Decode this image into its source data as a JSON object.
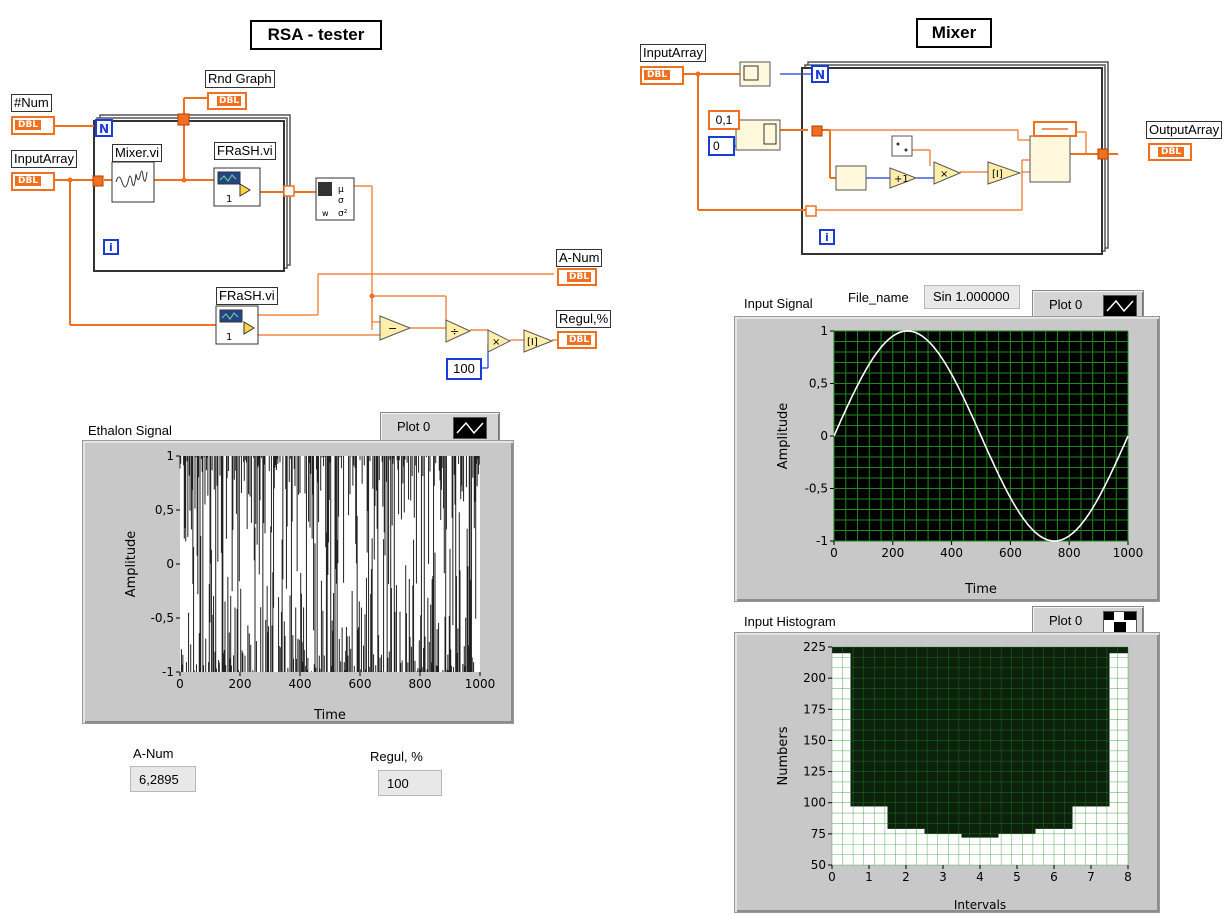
{
  "left_diagram": {
    "title": "RSA - tester",
    "labels": {
      "num": "#Num",
      "input_array": "InputArray",
      "rnd_graph": "Rnd Graph",
      "mixer_vi": "Mixer.vi",
      "frash_vi_1": "FRaSH.vi",
      "frash_vi_2": "FRaSH.vi",
      "a_num": "A-Num",
      "regul": "Regul,%",
      "const_100": "100",
      "loop_n": "N",
      "loop_i": "i",
      "frash_num": "1",
      "dbl": "DBL"
    }
  },
  "right_diagram": {
    "title": "Mixer",
    "labels": {
      "input_array": "InputArray",
      "output_array": "OutputArray",
      "const_01": "0,1",
      "const_0": "0",
      "loop_n": "N",
      "loop_i": "i",
      "dbl": "DBL"
    }
  },
  "ethalon_graph": {
    "title": "Ethalon Signal",
    "legend_label": "Plot 0",
    "chart_data": {
      "type": "line",
      "xlabel": "Time",
      "ylabel": "Amplitude",
      "xlim": [
        0,
        1000
      ],
      "ylim": [
        -1,
        1
      ],
      "x_ticks": [
        "0",
        "200",
        "400",
        "600",
        "800",
        "1000"
      ],
      "y_ticks": [
        "1",
        "0,5",
        "0",
        "-0,5",
        "-1"
      ],
      "series": [
        {
          "description": "random signal alternating between -1 and 1"
        }
      ]
    }
  },
  "input_signal_graph": {
    "title": "Input Signal",
    "file_label": "File_name",
    "file_value": "Sin 1.000000",
    "legend_label": "Plot 0",
    "chart_data": {
      "type": "line",
      "xlabel": "Time",
      "ylabel": "Amplitude",
      "xlim": [
        0,
        1000
      ],
      "ylim": [
        -1,
        1
      ],
      "x_ticks": [
        "0",
        "200",
        "400",
        "600",
        "800",
        "1000"
      ],
      "y_ticks": [
        "1",
        "0,5",
        "0",
        "-0,5",
        "-1"
      ],
      "grid": true,
      "series": [
        {
          "x_period": 1000,
          "amplitude": 1
        }
      ]
    }
  },
  "input_histogram": {
    "title": "Input Histogram",
    "legend_label": "Plot 0",
    "chart_data": {
      "type": "bar",
      "xlabel": "Intervals",
      "ylabel": "Numbers",
      "xlim": [
        0,
        8
      ],
      "ylim": [
        50,
        225
      ],
      "x_ticks": [
        "0",
        "1",
        "2",
        "3",
        "4",
        "5",
        "6",
        "7",
        "8"
      ],
      "y_ticks": [
        "225",
        "200",
        "175",
        "150",
        "125",
        "100",
        "75",
        "50"
      ],
      "grid": true,
      "categories": [
        "0",
        "1",
        "2",
        "3",
        "4",
        "5",
        "6",
        "7",
        "8"
      ],
      "values": [
        220,
        97,
        79,
        75,
        72,
        75,
        79,
        97,
        220
      ]
    }
  },
  "indicators": {
    "a_num_label": "A-Num",
    "a_num_value": "6,2895",
    "regul_label": "Regul, %",
    "regul_value": "100"
  }
}
